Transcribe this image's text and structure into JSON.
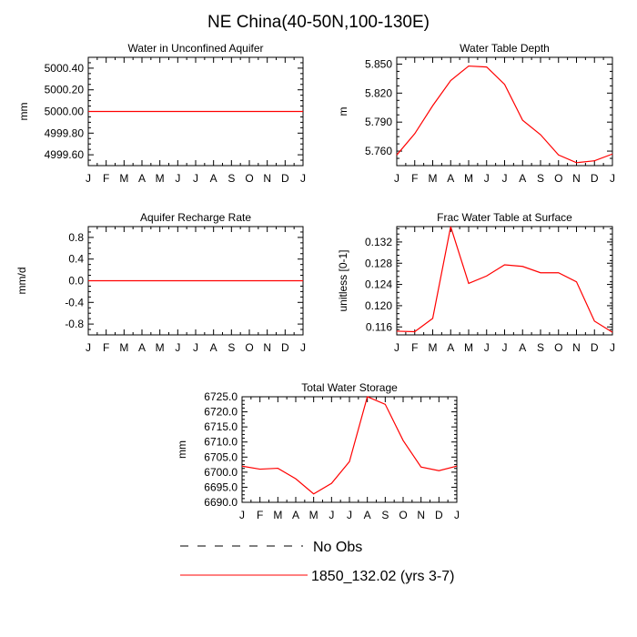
{
  "figure_title": "NE China(40-50N,100-130E)",
  "legend": {
    "entries": [
      {
        "label": "No Obs",
        "color": "#000000",
        "style": "dashed"
      },
      {
        "label": "1850_132.02 (yrs 3-7)",
        "color": "#ff0000",
        "style": "solid"
      }
    ]
  },
  "chart_data": [
    {
      "type": "line",
      "title": "Water in Unconfined Aquifer",
      "ylabel": "mm",
      "xlabel": "",
      "x": [
        "J",
        "F",
        "M",
        "A",
        "M",
        "J",
        "J",
        "A",
        "S",
        "O",
        "N",
        "D",
        "J"
      ],
      "ylim": [
        4999.5,
        5000.5
      ],
      "yticks": [
        4999.6,
        4999.8,
        5000.0,
        5000.2,
        5000.4
      ],
      "yticklabels": [
        "4999.60",
        "4999.80",
        "5000.00",
        "5000.20",
        "5000.40"
      ],
      "series": [
        {
          "color": "#ff0000",
          "values": [
            5000,
            5000,
            5000,
            5000,
            5000,
            5000,
            5000,
            5000,
            5000,
            5000,
            5000,
            5000,
            5000
          ]
        }
      ]
    },
    {
      "type": "line",
      "title": "Water Table Depth",
      "ylabel": "m",
      "xlabel": "",
      "x": [
        "J",
        "F",
        "M",
        "A",
        "M",
        "J",
        "J",
        "A",
        "S",
        "O",
        "N",
        "D",
        "J"
      ],
      "ylim": [
        5.745,
        5.857
      ],
      "yticks": [
        5.76,
        5.79,
        5.82,
        5.85
      ],
      "yticklabels": [
        "5.760",
        "5.790",
        "5.820",
        "5.850"
      ],
      "series": [
        {
          "color": "#ff0000",
          "values": [
            5.756,
            5.778,
            5.807,
            5.833,
            5.848,
            5.847,
            5.829,
            5.792,
            5.777,
            5.756,
            5.748,
            5.75,
            5.757
          ]
        }
      ]
    },
    {
      "type": "line",
      "title": "Aquifer Recharge Rate",
      "ylabel": "mm/d",
      "xlabel": "",
      "x": [
        "J",
        "F",
        "M",
        "A",
        "M",
        "J",
        "J",
        "A",
        "S",
        "O",
        "N",
        "D",
        "J"
      ],
      "ylim": [
        -1.0,
        1.0
      ],
      "yticks": [
        -0.8,
        -0.4,
        0.0,
        0.4,
        0.8
      ],
      "yticklabels": [
        "-0.8",
        "-0.4",
        "0.0",
        "0.4",
        "0.8"
      ],
      "series": [
        {
          "color": "#ff0000",
          "values": [
            0,
            0,
            0,
            0,
            0,
            0,
            0,
            0,
            0,
            0,
            0,
            0,
            0
          ]
        }
      ]
    },
    {
      "type": "line",
      "title": "Frac Water Table at Surface",
      "ylabel": "unitless [0-1]",
      "xlabel": "",
      "x": [
        "J",
        "F",
        "M",
        "A",
        "M",
        "J",
        "J",
        "A",
        "S",
        "O",
        "N",
        "D",
        "J"
      ],
      "ylim": [
        0.1145,
        0.1349
      ],
      "yticks": [
        0.116,
        0.12,
        0.124,
        0.128,
        0.132
      ],
      "yticklabels": [
        "0.116",
        "0.120",
        "0.124",
        "0.128",
        "0.132"
      ],
      "series": [
        {
          "color": "#ff0000",
          "values": [
            0.1152,
            0.1151,
            0.1176,
            0.1349,
            0.1242,
            0.1256,
            0.1277,
            0.1274,
            0.1262,
            0.1262,
            0.1245,
            0.1171,
            0.115
          ]
        }
      ]
    },
    {
      "type": "line",
      "title": "Total Water Storage",
      "ylabel": "mm",
      "xlabel": "",
      "x": [
        "J",
        "F",
        "M",
        "A",
        "M",
        "J",
        "J",
        "A",
        "S",
        "O",
        "N",
        "D",
        "J"
      ],
      "ylim": [
        6690.0,
        6725.0
      ],
      "yticks": [
        6690.0,
        6695.0,
        6700.0,
        6705.0,
        6710.0,
        6715.0,
        6720.0,
        6725.0
      ],
      "yticklabels": [
        "6690.0",
        "6695.0",
        "6700.0",
        "6705.0",
        "6710.0",
        "6715.0",
        "6720.0",
        "6725.0"
      ],
      "series": [
        {
          "color": "#ff0000",
          "values": [
            6702.0,
            6701.0,
            6701.3,
            6697.8,
            6692.8,
            6696.3,
            6703.5,
            6725.5,
            6722.5,
            6710.5,
            6701.7,
            6700.5,
            6702.0
          ]
        }
      ]
    }
  ]
}
